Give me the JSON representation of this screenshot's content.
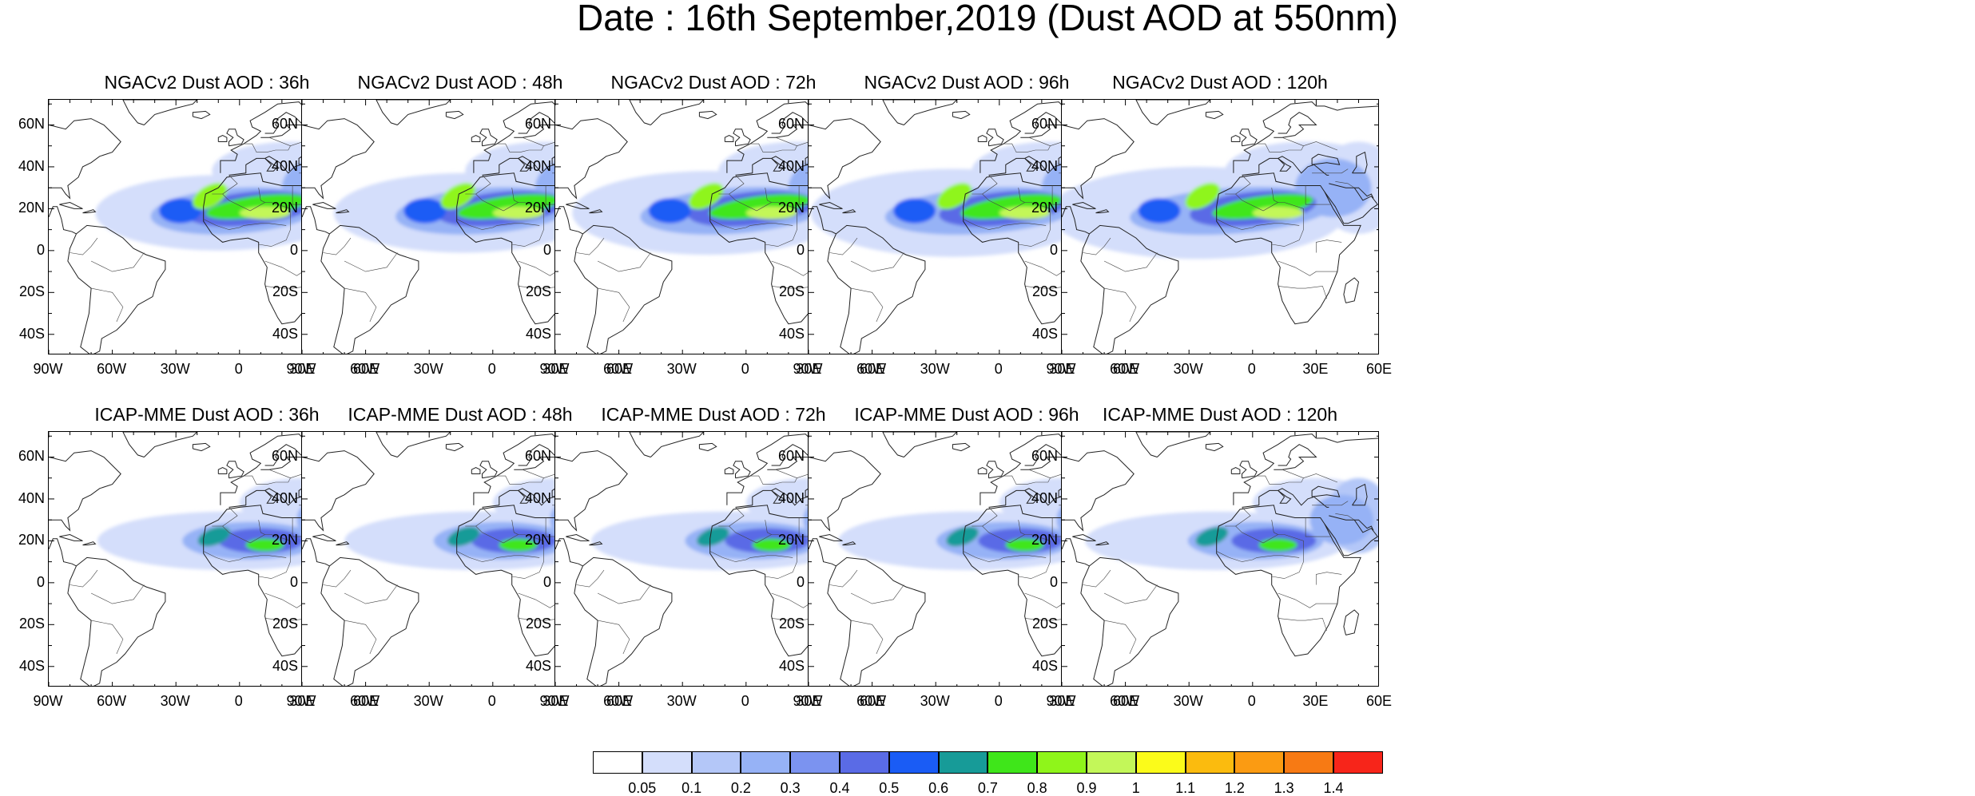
{
  "title": "Date : 16th September,2019 (Dust AOD at 550nm)",
  "lat_labels": [
    "60N",
    "40N",
    "20N",
    "0",
    "20S",
    "40S"
  ],
  "lon_labels": [
    "90W",
    "60W",
    "30W",
    "0",
    "30E",
    "60E"
  ],
  "map_extent": {
    "lon_range": [
      -90,
      60
    ],
    "lat_range": [
      -50,
      72
    ]
  },
  "panels": [
    {
      "title": "NGACv2 Dust AOD : 36h",
      "model": "NGACv2",
      "lead": "36h",
      "row": 0,
      "col": 0
    },
    {
      "title": "NGACv2 Dust AOD : 48h",
      "model": "NGACv2",
      "lead": "48h",
      "row": 0,
      "col": 1
    },
    {
      "title": "NGACv2 Dust AOD : 72h",
      "model": "NGACv2",
      "lead": "72h",
      "row": 0,
      "col": 2
    },
    {
      "title": "NGACv2 Dust AOD : 96h",
      "model": "NGACv2",
      "lead": "96h",
      "row": 0,
      "col": 3
    },
    {
      "title": "NGACv2 Dust AOD : 120h",
      "model": "NGACv2",
      "lead": "120h",
      "row": 0,
      "col": 4
    },
    {
      "title": "ICAP-MME Dust AOD : 36h",
      "model": "ICAP-MME",
      "lead": "36h",
      "row": 1,
      "col": 0
    },
    {
      "title": "ICAP-MME Dust AOD : 48h",
      "model": "ICAP-MME",
      "lead": "48h",
      "row": 1,
      "col": 1
    },
    {
      "title": "ICAP-MME Dust AOD : 72h",
      "model": "ICAP-MME",
      "lead": "72h",
      "row": 1,
      "col": 2
    },
    {
      "title": "ICAP-MME Dust AOD : 96h",
      "model": "ICAP-MME",
      "lead": "96h",
      "row": 1,
      "col": 3
    },
    {
      "title": "ICAP-MME Dust AOD : 120h",
      "model": "ICAP-MME",
      "lead": "120h",
      "row": 1,
      "col": 4
    }
  ],
  "colorbar": {
    "labels": [
      "0.05",
      "0.1",
      "0.2",
      "0.3",
      "0.4",
      "0.5",
      "0.6",
      "0.7",
      "0.8",
      "0.9",
      "1",
      "1.1",
      "1.2",
      "1.3",
      "1.4"
    ],
    "colors": [
      "#ffffff",
      "#d4defb",
      "#b4c7f8",
      "#96b2f6",
      "#7b93f0",
      "#5a6be6",
      "#1a5cf5",
      "#179b98",
      "#3fe61a",
      "#8ff51a",
      "#c3f759",
      "#fbfb1a",
      "#fbbb0e",
      "#fb9b12",
      "#f77a14",
      "#f7251a"
    ]
  }
}
